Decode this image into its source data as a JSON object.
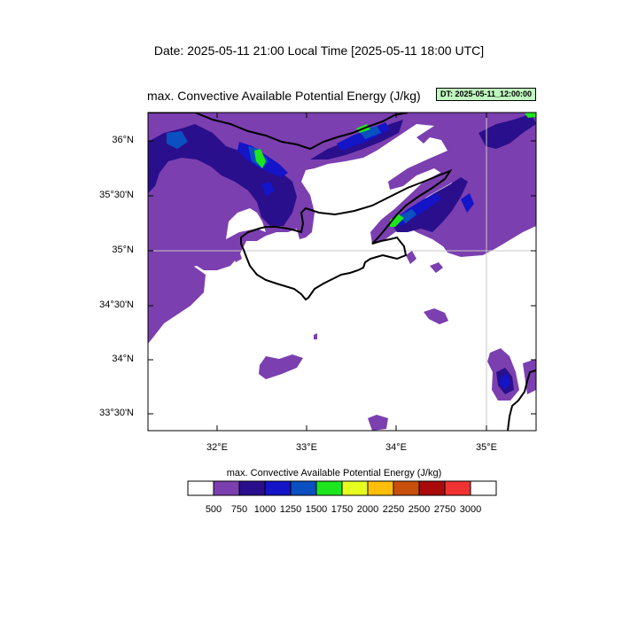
{
  "header": {
    "date_line": "Date: 2025-05-11  21:00 Local Time [2025-05-11  18:00 UTC]",
    "plot_title": "max. Convective Available Potential Energy   (J/kg)",
    "dt_badge": "DT: 2025-05-11_12:00:00"
  },
  "map": {
    "lat_labels": [
      "36°N",
      "35°30'N",
      "35°N",
      "34°30'N",
      "34°N",
      "33°30'N"
    ],
    "lon_labels": [
      "32°E",
      "33°E",
      "34°E",
      "35°E"
    ],
    "grid_color": "#c8c8c8",
    "coast_color": "#000000"
  },
  "colorbar": {
    "title": "max. Convective Available Potential Energy  (J/kg)",
    "labels": [
      "500",
      "750",
      "1000",
      "1250",
      "1500",
      "1750",
      "2000",
      "2250",
      "2500",
      "2750",
      "3000"
    ],
    "colors": [
      "#ffffff",
      "#7b3fb0",
      "#2a0f8c",
      "#1414c8",
      "#0a50c0",
      "#1ee61e",
      "#e6ff1e",
      "#ffbe0a",
      "#c8500a",
      "#aa0a0a",
      "#f03232",
      "#ffffff"
    ]
  }
}
